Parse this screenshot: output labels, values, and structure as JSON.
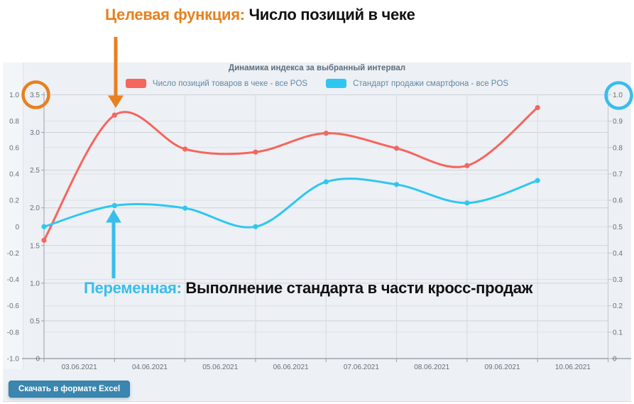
{
  "annotations": {
    "target_label": "Целевая функция:",
    "target_text": " Число позиций в чеке",
    "variable_label": "Переменная:",
    "variable_text": " Выполнение стандарта в части кросс-продаж",
    "orange_color": "#e8801e",
    "cyan_color": "#38bdec"
  },
  "button": {
    "label": "Скачать в формате Excel",
    "color": "#3a86ae"
  },
  "chart_data": {
    "type": "line",
    "title": "Динамика индекса за выбранный интервал",
    "legend_position": "top",
    "grid": true,
    "x": [
      "03.06.2021",
      "04.06.2021",
      "05.06.2021",
      "06.06.2021",
      "07.06.2021",
      "08.06.2021",
      "09.06.2021",
      "10.06.2021"
    ],
    "series": [
      {
        "name": "Число позиций товаров в чеке - все POS",
        "color": "#f4665e",
        "axis": "left_inner",
        "values": [
          1.57,
          3.23,
          2.78,
          2.74,
          2.99,
          2.79,
          2.56,
          3.33
        ]
      },
      {
        "name": "Стандарт продажи смартфона - все POS",
        "color": "#2fc7f1",
        "axis": "right",
        "values": [
          0.5,
          0.58,
          0.57,
          0.5,
          0.67,
          0.66,
          0.59,
          0.675
        ]
      }
    ],
    "axes": {
      "left_outer": {
        "min": -1.0,
        "max": 1.0,
        "step": 0.2,
        "labels": [
          "1.0",
          "0.8",
          "0.6",
          "0.4",
          "0.2",
          "0",
          "-0.2",
          "-0.4",
          "-0.6",
          "-0.8",
          "-1.0"
        ]
      },
      "left_inner": {
        "min": 0,
        "max": 3.5,
        "step": 0.5,
        "labels": [
          "3.5",
          "3.0",
          "2.5",
          "2.0",
          "1.5",
          "1.0",
          "0.5",
          "0"
        ],
        "highlight": "3.5"
      },
      "right": {
        "min": 0,
        "max": 1.0,
        "step": 0.1,
        "labels": [
          "1.0",
          "0.9",
          "0.8",
          "0.7",
          "0.6",
          "0.5",
          "0.4",
          "0.3",
          "0.2",
          "0.1",
          "0"
        ],
        "highlight": "1.0"
      }
    }
  }
}
